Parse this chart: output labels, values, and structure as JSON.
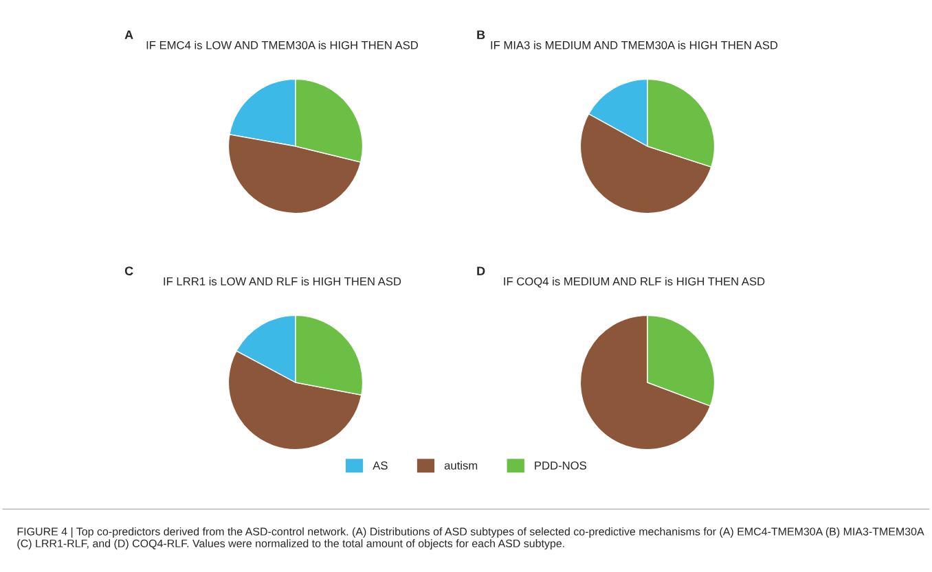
{
  "chart_data": [
    {
      "type": "pie",
      "title": "IF EMC4 is LOW AND TMEM30A is HIGH THEN ASD",
      "annotations": [
        "A"
      ],
      "categories": [
        "AS",
        "autism",
        "PDD-NOS"
      ],
      "values": [
        22.2,
        49.0,
        28.8
      ],
      "colors": [
        "#3db9e8",
        "#8b563a",
        "#6cbf45"
      ],
      "legend": "bottom"
    },
    {
      "type": "pie",
      "title": "IF MIA3 is MEDIUM AND TMEM30A is HIGH THEN ASD",
      "annotations": [
        "B"
      ],
      "categories": [
        null,
        null,
        null
      ],
      "values": [
        17.0,
        53.0,
        30.0
      ],
      "colors": [
        "#3db9e8",
        "#8b563a",
        "#6cbf45"
      ]
    },
    {
      "type": "pie",
      "title": "IF LRR1 is LOW AND RLF is HIGH THEN ASD",
      "annotations": [
        "C"
      ],
      "categories": [
        null,
        null,
        null
      ],
      "values": [
        17.2,
        54.8,
        28.0
      ],
      "colors": [
        "#3db9e8",
        "#8b563a",
        "#6cbf45"
      ]
    },
    {
      "type": "pie",
      "title": "IF COQ4 is MEDIUM AND RLF is HIGH THEN ASD",
      "annotations": [
        "D",
        "FIGURE 4 | Top co-predictors derived from the ASD-control network. (A) Distributions of ASD subtypes of selected co-predictive mechanisms for (A) EMC4-TMEM30A (B) MIA3-TMEM30A (C) LRR1-RLF, and (D) COQ4-RLF. Values were normalized to the total amount of objects for each ASD subtype."
      ],
      "categories": [
        null,
        null,
        null
      ],
      "values": [
        0,
        69.3,
        30.7
      ],
      "colors": [
        "#3db9e8",
        "#8b563a",
        "#6cbf45"
      ]
    }
  ]
}
